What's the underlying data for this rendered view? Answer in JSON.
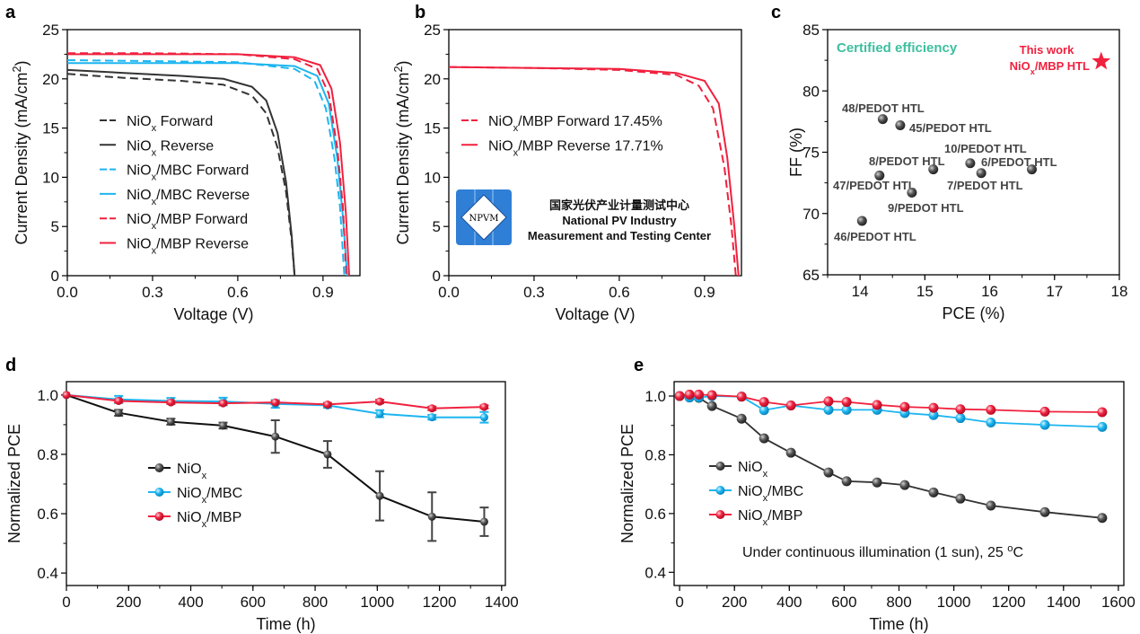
{
  "colors": {
    "niox": "#333333",
    "mbc": "#1cb5f0",
    "mbp": "#f0213e",
    "certified": "#3dbf9f",
    "logo_blue": "#2f7fd6"
  },
  "chart_data": [
    {
      "panel": "a",
      "type": "line",
      "xlabel": "Voltage (V)",
      "ylabel": "Current Density (mA/cm2)",
      "xlim": [
        0,
        1.03
      ],
      "ylim": [
        0,
        25
      ],
      "xticks": [
        "0.0",
        "0.3",
        "0.6",
        "0.9"
      ],
      "yticks": [
        "0",
        "5",
        "10",
        "15",
        "20",
        "25"
      ],
      "legend": "center-left",
      "series": [
        {
          "name": "NiOx Forward",
          "color": "#333333",
          "dash": true,
          "points": [
            [
              0,
              20.5
            ],
            [
              0.2,
              20.1
            ],
            [
              0.4,
              19.8
            ],
            [
              0.55,
              19.4
            ],
            [
              0.65,
              18.3
            ],
            [
              0.7,
              16.5
            ],
            [
              0.74,
              13
            ],
            [
              0.77,
              8.5
            ],
            [
              0.79,
              3.5
            ],
            [
              0.8,
              0
            ]
          ]
        },
        {
          "name": "NiOx Reverse",
          "color": "#333333",
          "dash": false,
          "points": [
            [
              0,
              20.9
            ],
            [
              0.2,
              20.6
            ],
            [
              0.4,
              20.3
            ],
            [
              0.55,
              20.0
            ],
            [
              0.65,
              19.2
            ],
            [
              0.7,
              17.8
            ],
            [
              0.74,
              14.5
            ],
            [
              0.77,
              9.5
            ],
            [
              0.79,
              4
            ],
            [
              0.8,
              0
            ]
          ]
        },
        {
          "name": "NiOx/MBC Forward",
          "color": "#1cb5f0",
          "dash": true,
          "points": [
            [
              0,
              21.9
            ],
            [
              0.3,
              21.8
            ],
            [
              0.6,
              21.7
            ],
            [
              0.8,
              21.0
            ],
            [
              0.87,
              19.8
            ],
            [
              0.91,
              17
            ],
            [
              0.94,
              12
            ],
            [
              0.96,
              7
            ],
            [
              0.975,
              0
            ]
          ]
        },
        {
          "name": "NiOx/MBC Reverse",
          "color": "#1cb5f0",
          "dash": false,
          "points": [
            [
              0,
              21.6
            ],
            [
              0.3,
              21.6
            ],
            [
              0.6,
              21.6
            ],
            [
              0.8,
              21.3
            ],
            [
              0.88,
              20.3
            ],
            [
              0.92,
              17.5
            ],
            [
              0.95,
              12
            ],
            [
              0.97,
              6
            ],
            [
              0.985,
              0
            ]
          ]
        },
        {
          "name": "NiOx/MBP Forward",
          "color": "#f0213e",
          "dash": true,
          "points": [
            [
              0,
              22.6
            ],
            [
              0.3,
              22.6
            ],
            [
              0.6,
              22.5
            ],
            [
              0.8,
              22.0
            ],
            [
              0.88,
              21
            ],
            [
              0.92,
              18.5
            ],
            [
              0.95,
              13
            ],
            [
              0.97,
              7
            ],
            [
              0.982,
              0
            ]
          ]
        },
        {
          "name": "NiOx/MBP Reverse",
          "color": "#f0213e",
          "dash": false,
          "points": [
            [
              0,
              22.5
            ],
            [
              0.3,
              22.5
            ],
            [
              0.6,
              22.5
            ],
            [
              0.8,
              22.2
            ],
            [
              0.89,
              21.4
            ],
            [
              0.93,
              19
            ],
            [
              0.96,
              13.5
            ],
            [
              0.98,
              6.5
            ],
            [
              0.992,
              0
            ]
          ]
        }
      ]
    },
    {
      "panel": "b",
      "type": "line",
      "xlabel": "Voltage (V)",
      "ylabel": "Current Density (mA/cm2)",
      "xlim": [
        0,
        1.03
      ],
      "ylim": [
        0,
        25
      ],
      "xticks": [
        "0.0",
        "0.3",
        "0.6",
        "0.9"
      ],
      "yticks": [
        "0",
        "5",
        "10",
        "15",
        "20",
        "25"
      ],
      "legend": "center-left",
      "series": [
        {
          "name": "NiOx/MBP Forward 17.45%",
          "color": "#f0213e",
          "dash": true,
          "points": [
            [
              0,
              21.2
            ],
            [
              0.3,
              21.1
            ],
            [
              0.6,
              20.9
            ],
            [
              0.8,
              20.4
            ],
            [
              0.88,
              19.3
            ],
            [
              0.93,
              17
            ],
            [
              0.97,
              11
            ],
            [
              0.995,
              5
            ],
            [
              1.01,
              0
            ]
          ]
        },
        {
          "name": "NiOx/MBP Reverse 17.71%",
          "color": "#f0213e",
          "dash": false,
          "points": [
            [
              0,
              21.2
            ],
            [
              0.3,
              21.1
            ],
            [
              0.6,
              21.0
            ],
            [
              0.8,
              20.6
            ],
            [
              0.9,
              19.8
            ],
            [
              0.95,
              17.5
            ],
            [
              0.98,
              12
            ],
            [
              1.005,
              5
            ],
            [
              1.02,
              0
            ]
          ]
        }
      ],
      "logo": {
        "mark": "NPVM",
        "line1": "国家光伏产业计量测试中心",
        "line2": "National PV Industry",
        "line3": "Measurement and Testing Center"
      }
    },
    {
      "panel": "c",
      "type": "scatter",
      "xlabel": "PCE (%)",
      "ylabel": "FF (%)",
      "xlim": [
        13.5,
        18
      ],
      "ylim": [
        65,
        85
      ],
      "xticks": [
        "14",
        "15",
        "16",
        "17",
        "18"
      ],
      "yticks": [
        "65",
        "70",
        "75",
        "80",
        "85"
      ],
      "annotation": "Certified efficiency",
      "points": [
        {
          "label": "48/PEDOT HTL",
          "x": 14.35,
          "y": 77.7
        },
        {
          "label": "45/PEDOT HTL",
          "x": 14.62,
          "y": 77.2
        },
        {
          "label": "10/PEDOT HTL",
          "x": 15.7,
          "y": 74.1
        },
        {
          "label": "6/PEDOT HTL",
          "x": 16.65,
          "y": 73.6
        },
        {
          "label": "8/PEDOT HTL",
          "x": 15.13,
          "y": 73.6
        },
        {
          "label": "7/PEDOT HTL",
          "x": 15.87,
          "y": 73.3
        },
        {
          "label": "47/PEDOT HTL",
          "x": 14.3,
          "y": 73.1
        },
        {
          "label": "9/PEDOT HTL",
          "x": 14.8,
          "y": 71.7
        },
        {
          "label": "46/PEDOT HTL",
          "x": 14.03,
          "y": 69.4
        }
      ],
      "highlight": {
        "label1": "This work",
        "label2": "NiOx/MBP HTL",
        "x": 17.72,
        "y": 82.4,
        "marker": "star",
        "color": "#f0213e"
      }
    },
    {
      "panel": "d",
      "type": "line",
      "xlabel": "Time (h)",
      "ylabel": "Normalized PCE",
      "xlim": [
        0,
        1412
      ],
      "ylim": [
        0.358,
        1.045
      ],
      "xticks": [
        "0",
        "200",
        "400",
        "600",
        "800",
        "1000",
        "1200",
        "1400"
      ],
      "yticks": [
        "0.4",
        "0.6",
        "0.8",
        "1.0"
      ],
      "legend": "center-left",
      "x": [
        0,
        168,
        336,
        504,
        672,
        840,
        1008,
        1176,
        1344
      ],
      "series": [
        {
          "name": "NiOx",
          "color": "#333333",
          "values": [
            1.0,
            0.94,
            0.91,
            0.897,
            0.86,
            0.8,
            0.66,
            0.59,
            0.573
          ],
          "errors": [
            0,
            0.01,
            0.01,
            0.01,
            0.055,
            0.045,
            0.083,
            0.082,
            0.048
          ]
        },
        {
          "name": "NiOx/MBC",
          "color": "#1cb5f0",
          "values": [
            1.0,
            0.985,
            0.98,
            0.978,
            0.97,
            0.965,
            0.937,
            0.925,
            0.925
          ],
          "errors": [
            0,
            0.012,
            0.01,
            0.013,
            0.013,
            0.008,
            0.012,
            0.008,
            0.018
          ]
        },
        {
          "name": "NiOx/MBP",
          "color": "#f0213e",
          "values": [
            1.0,
            0.98,
            0.975,
            0.972,
            0.975,
            0.968,
            0.978,
            0.955,
            0.96
          ],
          "errors": [
            0,
            0.005,
            0.005,
            0.005,
            0.005,
            0.005,
            0.006,
            0.006,
            0.005
          ]
        }
      ]
    },
    {
      "panel": "e",
      "type": "line",
      "xlabel": "Time (h)",
      "ylabel": "Normalized PCE",
      "xlim": [
        -20,
        1620
      ],
      "ylim": [
        0.355,
        1.049
      ],
      "xticks": [
        "0",
        "200",
        "400",
        "600",
        "800",
        "1000",
        "1200",
        "1400",
        "1600"
      ],
      "yticks": [
        "0.4",
        "0.6",
        "0.8",
        "1.0"
      ],
      "legend": "center-left",
      "annotation": "Under continuous  illumination (1 sun), 25 oC",
      "x": [
        0,
        36,
        70,
        118,
        226,
        308,
        406,
        543,
        609,
        720,
        821,
        926,
        1024,
        1135,
        1332,
        1541
      ],
      "series": [
        {
          "name": "NiOx",
          "color": "#333333",
          "values": [
            1.0,
            0.995,
            0.994,
            0.966,
            0.923,
            0.856,
            0.807,
            0.74,
            0.71,
            0.706,
            0.697,
            0.672,
            0.651,
            0.627,
            0.605,
            0.585
          ]
        },
        {
          "name": "NiOx/MBC",
          "color": "#1cb5f0",
          "values": [
            1.0,
            0.995,
            0.995,
            1.0,
            0.998,
            0.952,
            0.968,
            0.953,
            0.953,
            0.953,
            0.942,
            0.935,
            0.925,
            0.91,
            0.902,
            0.895
          ]
        },
        {
          "name": "NiOx/MBP",
          "color": "#f0213e",
          "values": [
            1.0,
            1.005,
            1.005,
            1.003,
            0.998,
            0.98,
            0.968,
            0.982,
            0.98,
            0.97,
            0.963,
            0.96,
            0.955,
            0.953,
            0.947,
            0.945
          ]
        }
      ]
    }
  ]
}
